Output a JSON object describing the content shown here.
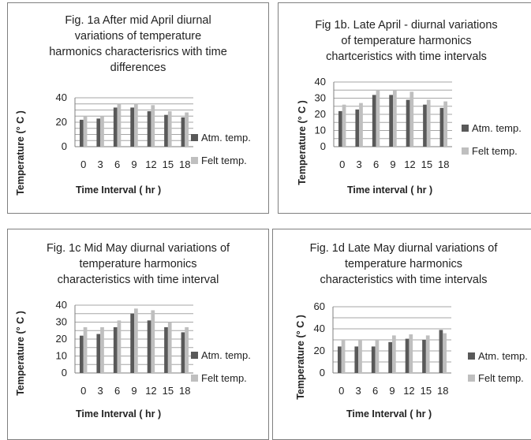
{
  "colors": {
    "atm": "#595959",
    "felt": "#bfbfbf",
    "grid": "#a6a6a6",
    "axis": "#7f7f7f"
  },
  "chart_data": [
    {
      "type": "bar",
      "title": "Fig. 1a After mid April diurnal\nvariations of temperature\nharmonics characterisrics with time\ndifferences",
      "xlabel": "Time Interval ( hr )",
      "ylabel": "Temperature (° C )",
      "categories": [
        "0",
        "3",
        "6",
        "9",
        "12",
        "15",
        "18"
      ],
      "ylim": [
        0,
        40
      ],
      "yticks": [
        0,
        20,
        40
      ],
      "grid": true,
      "legend_position": "right",
      "series": [
        {
          "name": "Atm. temp.",
          "values": [
            22,
            23,
            32,
            32,
            29,
            26,
            24
          ]
        },
        {
          "name": "Felt temp.",
          "values": [
            25,
            25,
            35,
            35,
            34,
            29,
            28
          ]
        }
      ]
    },
    {
      "type": "bar",
      "title": "Fig 1b. Late April - diurnal variations\nof temperature harmonics\nchartceristics with time intervals",
      "xlabel": "Time interval ( hr )",
      "ylabel": "Temperature (° C )",
      "categories": [
        "0",
        "3",
        "6",
        "9",
        "12",
        "15",
        "18"
      ],
      "ylim": [
        0,
        40
      ],
      "yticks": [
        0,
        10,
        20,
        30,
        40
      ],
      "grid": true,
      "legend_position": "right",
      "series": [
        {
          "name": "Atm. temp.",
          "values": [
            22,
            23,
            32,
            32,
            29,
            26,
            24
          ]
        },
        {
          "name": "Felt temp.",
          "values": [
            26,
            27,
            35,
            35,
            34,
            29,
            28
          ]
        }
      ]
    },
    {
      "type": "bar",
      "title": "Fig. 1c Mid May diurnal variations of\ntemperature harmonics\ncharacteristics with time interval",
      "xlabel": "Time Interval ( hr )",
      "ylabel": "Temperature (° C )",
      "categories": [
        "0",
        "3",
        "6",
        "9",
        "12",
        "15",
        "18"
      ],
      "ylim": [
        0,
        40
      ],
      "yticks": [
        0,
        10,
        20,
        30,
        40
      ],
      "grid": true,
      "legend_position": "right",
      "series": [
        {
          "name": "Atm. temp.",
          "values": [
            22,
            23,
            27,
            35,
            31,
            27,
            24
          ]
        },
        {
          "name": "Felt temp.",
          "values": [
            27,
            27,
            31,
            38,
            37,
            30,
            27
          ]
        }
      ]
    },
    {
      "type": "bar",
      "title": "Fig. 1d  Late May diurnal variations of\ntemperature harmonics\ncharacteristics with time intervals",
      "xlabel": "Time Interval ( hr )",
      "ylabel": "Temperature (° C )",
      "categories": [
        "0",
        "3",
        "6",
        "9",
        "12",
        "15",
        "18"
      ],
      "ylim": [
        0,
        60
      ],
      "yticks": [
        0,
        20,
        40,
        60
      ],
      "grid": true,
      "legend_position": "right",
      "series": [
        {
          "name": "Atm. temp.",
          "values": [
            24,
            24,
            24,
            28,
            31,
            30,
            39
          ]
        },
        {
          "name": "Felt temp.",
          "values": [
            30,
            30,
            30,
            34,
            35,
            34,
            36
          ]
        }
      ]
    }
  ]
}
